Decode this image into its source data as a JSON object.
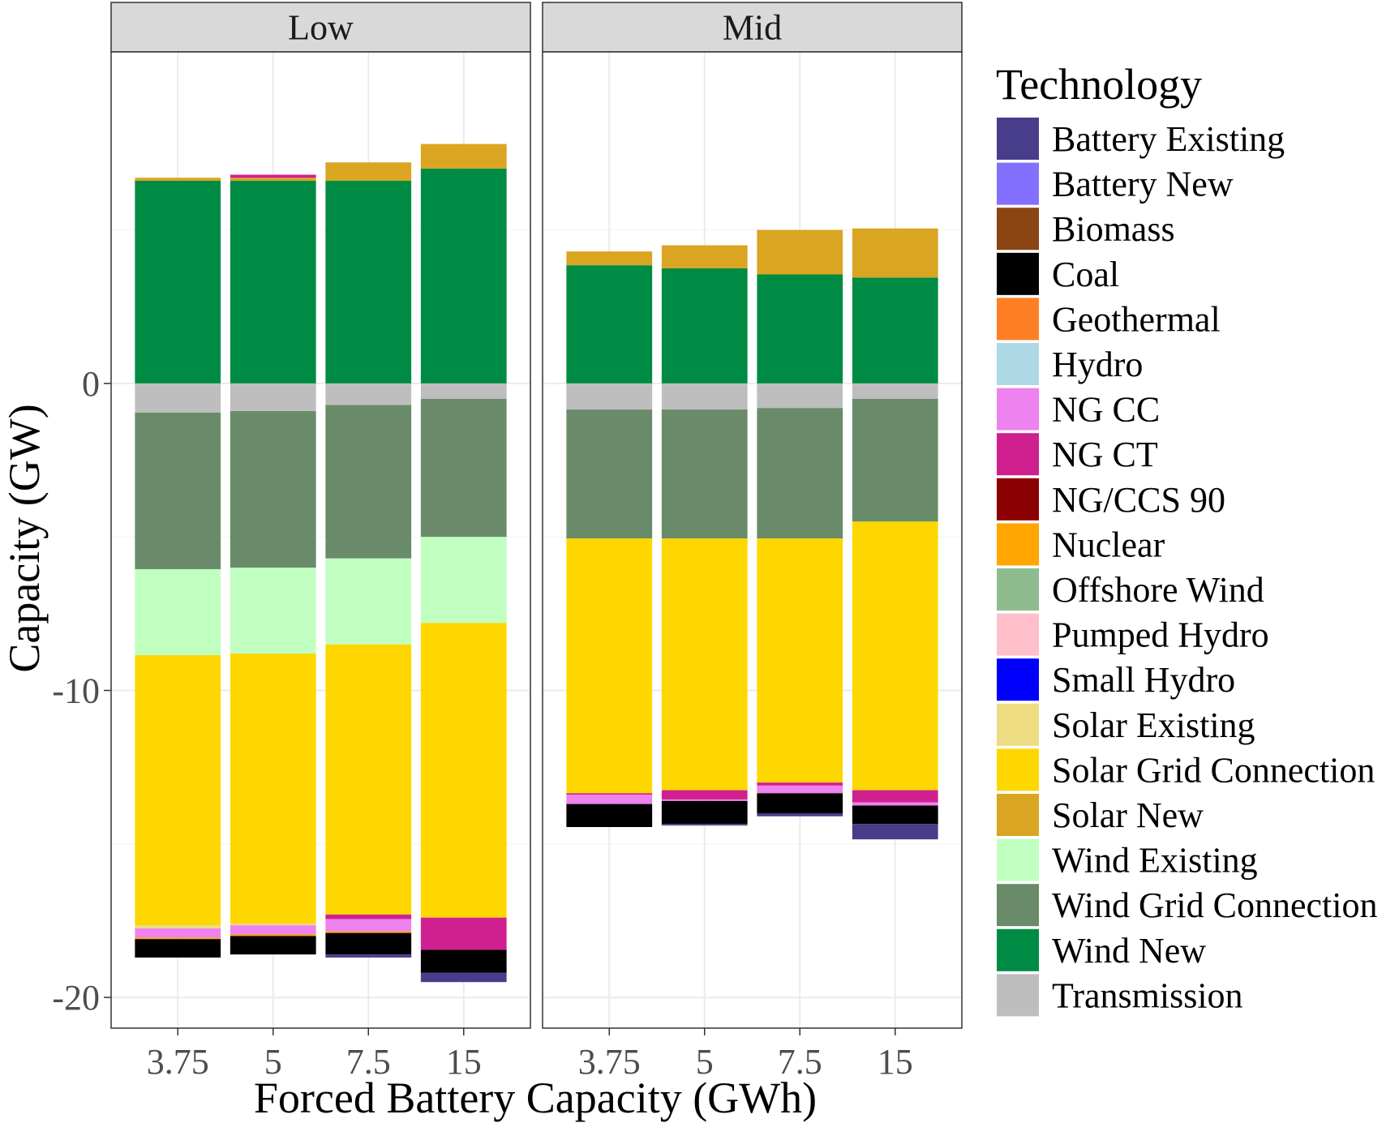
{
  "chart_data": {
    "type": "bar",
    "stacked": true,
    "facets": [
      {
        "label": "Low",
        "bars": [
          {
            "x": "3.75",
            "pos": [
              [
                "Wind New",
                6.6
              ],
              [
                "Solar New",
                0.1
              ]
            ],
            "neg": [
              [
                "Transmission",
                0.95
              ],
              [
                "Wind Grid Connection",
                5.1
              ],
              [
                "Wind Existing",
                2.8
              ],
              [
                "Solar Grid Connection",
                8.8
              ],
              [
                "Solar Existing",
                0.1
              ],
              [
                "NG CC",
                0.3
              ],
              [
                "Nuclear",
                0.05
              ],
              [
                "Coal",
                0.6
              ]
            ]
          },
          {
            "x": "5",
            "pos": [
              [
                "Wind New",
                6.6
              ],
              [
                "Solar New",
                0.1
              ],
              [
                "NG CT",
                0.1
              ]
            ],
            "neg": [
              [
                "Transmission",
                0.9
              ],
              [
                "Wind Grid Connection",
                5.1
              ],
              [
                "Wind Existing",
                2.8
              ],
              [
                "Solar Grid Connection",
                8.8
              ],
              [
                "Solar Existing",
                0.05
              ],
              [
                "NG CC",
                0.3
              ],
              [
                "Nuclear",
                0.05
              ],
              [
                "Coal",
                0.6
              ]
            ]
          },
          {
            "x": "7.5",
            "pos": [
              [
                "Wind New",
                6.6
              ],
              [
                "Solar New",
                0.6
              ]
            ],
            "neg": [
              [
                "Transmission",
                0.7
              ],
              [
                "Wind Grid Connection",
                5.0
              ],
              [
                "Wind Existing",
                2.8
              ],
              [
                "Solar Grid Connection",
                8.8
              ],
              [
                "NG CT",
                0.15
              ],
              [
                "NG CC",
                0.4
              ],
              [
                "Nuclear",
                0.05
              ],
              [
                "Coal",
                0.7
              ],
              [
                "Battery Existing",
                0.1
              ]
            ]
          },
          {
            "x": "15",
            "pos": [
              [
                "Wind New",
                7.0
              ],
              [
                "Solar New",
                0.8
              ]
            ],
            "neg": [
              [
                "Transmission",
                0.5
              ],
              [
                "Wind Grid Connection",
                4.5
              ],
              [
                "Wind Existing",
                2.8
              ],
              [
                "Solar Grid Connection",
                9.6
              ],
              [
                "NG CT",
                1.05
              ],
              [
                "Coal",
                0.75
              ],
              [
                "Battery Existing",
                0.3
              ]
            ]
          }
        ]
      },
      {
        "label": "Mid",
        "bars": [
          {
            "x": "3.75",
            "pos": [
              [
                "Wind New",
                3.85
              ],
              [
                "Solar New",
                0.45
              ]
            ],
            "neg": [
              [
                "Transmission",
                0.85
              ],
              [
                "Wind Grid Connection",
                4.2
              ],
              [
                "Solar Grid Connection",
                8.3
              ],
              [
                "NG CT",
                0.05
              ],
              [
                "NG CC",
                0.3
              ],
              [
                "Coal",
                0.75
              ]
            ]
          },
          {
            "x": "5",
            "pos": [
              [
                "Wind New",
                3.75
              ],
              [
                "Solar New",
                0.75
              ]
            ],
            "neg": [
              [
                "Transmission",
                0.85
              ],
              [
                "Wind Grid Connection",
                4.2
              ],
              [
                "Solar Grid Connection",
                8.2
              ],
              [
                "NG CT",
                0.3
              ],
              [
                "NG CC",
                0.05
              ],
              [
                "Coal",
                0.75
              ],
              [
                "Battery Existing",
                0.05
              ]
            ]
          },
          {
            "x": "7.5",
            "pos": [
              [
                "Wind New",
                3.55
              ],
              [
                "Solar New",
                1.45
              ]
            ],
            "neg": [
              [
                "Transmission",
                0.8
              ],
              [
                "Wind Grid Connection",
                4.25
              ],
              [
                "Solar Grid Connection",
                7.95
              ],
              [
                "NG CT",
                0.1
              ],
              [
                "NG CC",
                0.25
              ],
              [
                "Coal",
                0.65
              ],
              [
                "Battery Existing",
                0.1
              ]
            ]
          },
          {
            "x": "15",
            "pos": [
              [
                "Wind New",
                3.45
              ],
              [
                "Solar New",
                1.6
              ]
            ],
            "neg": [
              [
                "Transmission",
                0.5
              ],
              [
                "Wind Grid Connection",
                4.0
              ],
              [
                "Solar Grid Connection",
                8.75
              ],
              [
                "NG CT",
                0.4
              ],
              [
                "NG CC",
                0.1
              ],
              [
                "Coal",
                0.6
              ],
              [
                "Battery Existing",
                0.5
              ]
            ]
          }
        ]
      }
    ],
    "xlabel": "Forced Battery Capacity (GWh)",
    "ylabel": "Capacity (GW)",
    "ylim": [
      -21,
      10.8
    ],
    "yticks": [
      0,
      -10,
      -20
    ],
    "ytick_labels": [
      "0",
      "-10",
      "-20"
    ],
    "grid": true,
    "legend": {
      "title": "Technology",
      "position": "right",
      "entries": [
        {
          "name": "Battery Existing",
          "color": "#483D8B"
        },
        {
          "name": "Battery New",
          "color": "#8470FF"
        },
        {
          "name": "Biomass",
          "color": "#8B4513"
        },
        {
          "name": "Coal",
          "color": "#000000"
        },
        {
          "name": "Geothermal",
          "color": "#FF7F24"
        },
        {
          "name": "Hydro",
          "color": "#ADD8E6"
        },
        {
          "name": "NG CC",
          "color": "#EE82EE"
        },
        {
          "name": "NG CT",
          "color": "#D02090"
        },
        {
          "name": "NG/CCS 90",
          "color": "#8B0000"
        },
        {
          "name": "Nuclear",
          "color": "#FFA500"
        },
        {
          "name": "Offshore Wind",
          "color": "#8FBC8F"
        },
        {
          "name": "Pumped Hydro",
          "color": "#FFC0CB"
        },
        {
          "name": "Small Hydro",
          "color": "#0000FF"
        },
        {
          "name": "Solar Existing",
          "color": "#EEDC82"
        },
        {
          "name": "Solar Grid Connection",
          "color": "#FFD700"
        },
        {
          "name": "Solar New",
          "color": "#DAA520"
        },
        {
          "name": "Wind Existing",
          "color": "#C1FFC1"
        },
        {
          "name": "Wind Grid Connection",
          "color": "#698B69"
        },
        {
          "name": "Wind New",
          "color": "#008B45"
        },
        {
          "name": "Transmission",
          "color": "#BEBEBE"
        }
      ]
    }
  }
}
